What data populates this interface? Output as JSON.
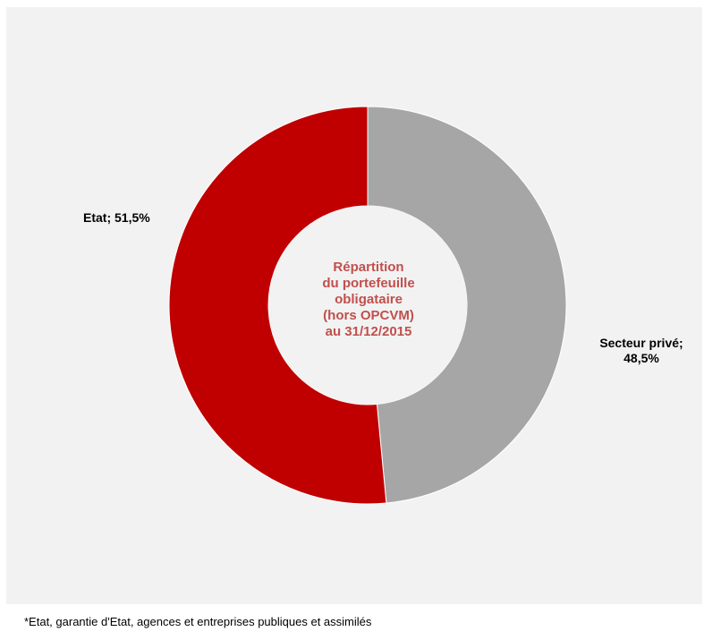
{
  "chart_data": {
    "type": "pie",
    "style": "donut",
    "title_lines": [
      "Répartition",
      "du portefeuille",
      "obligataire",
      "(hors OPCVM)",
      "au 31/12/2015"
    ],
    "slices": [
      {
        "name": "Secteur privé",
        "value": 48.5,
        "label_line1": "Secteur privé;",
        "label_line2": "48,5%",
        "color": "#a6a6a6"
      },
      {
        "name": "Etat",
        "value": 51.5,
        "label": "Etat;  51,5%",
        "color": "#c00000"
      }
    ],
    "background_color": "#f2f2f2",
    "title_color": "#c0504d"
  },
  "footnote": "*Etat,  garantie d'Etat, agences et entreprises publiques et assimilés"
}
